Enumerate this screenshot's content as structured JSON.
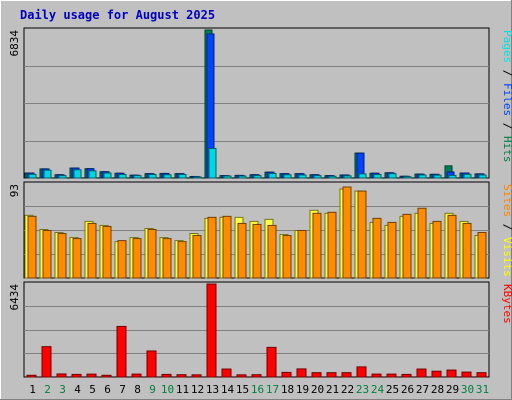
{
  "chart_data": {
    "type": "bar",
    "title": "Daily usage for August 2025",
    "categories": [
      "1",
      "2",
      "3",
      "4",
      "5",
      "6",
      "7",
      "8",
      "9",
      "10",
      "11",
      "12",
      "13",
      "14",
      "15",
      "16",
      "17",
      "18",
      "19",
      "20",
      "21",
      "22",
      "23",
      "24",
      "25",
      "26",
      "27",
      "28",
      "29",
      "30",
      "31"
    ],
    "weekend_days": [
      "2",
      "3",
      "9",
      "10",
      "16",
      "17",
      "23",
      "24",
      "30",
      "31"
    ],
    "panels": [
      {
        "name": "hits-files-pages",
        "ymax_label": "6834",
        "ymax": 6834,
        "ylabel_parts": [
          {
            "text": "Pages",
            "color": "#00e0e0"
          },
          {
            "text": " / ",
            "color": "#000000"
          },
          {
            "text": "Files",
            "color": "#0040ff"
          },
          {
            "text": " / ",
            "color": "#000000"
          },
          {
            "text": "Hits",
            "color": "#008040"
          }
        ],
        "series": [
          {
            "name": "Hits",
            "color": "#00805a",
            "values": [
              230,
              420,
              150,
              460,
              430,
              290,
              220,
              130,
              200,
              210,
              200,
              70,
              6834,
              110,
              120,
              150,
              270,
              200,
              200,
              150,
              110,
              140,
              1150,
              220,
              240,
              80,
              180,
              170,
              560,
              230,
              190
            ]
          },
          {
            "name": "Files",
            "color": "#0044ff",
            "values": [
              230,
              420,
              150,
              460,
              430,
              290,
              220,
              130,
              200,
              210,
              200,
              70,
              6650,
              110,
              120,
              150,
              270,
              200,
              200,
              150,
              110,
              140,
              1150,
              220,
              240,
              80,
              180,
              170,
              280,
              230,
              190
            ]
          },
          {
            "name": "Pages",
            "color": "#00d8e0",
            "values": [
              170,
              360,
              110,
              380,
              330,
              230,
              160,
              110,
              160,
              150,
              160,
              50,
              1360,
              90,
              90,
              110,
              210,
              150,
              140,
              110,
              80,
              100,
              190,
              160,
              200,
              60,
              140,
              130,
              120,
              170,
              140
            ]
          }
        ]
      },
      {
        "name": "visits-sites",
        "ymax_label": "93",
        "ymax": 93,
        "ylabel_parts": [
          {
            "text": "Sites",
            "color": "#ff8000"
          },
          {
            "text": " / ",
            "color": "#000000"
          },
          {
            "text": "Visits",
            "color": "#ffff00"
          }
        ],
        "series": [
          {
            "name": "Visits",
            "color": "#ffff40",
            "values": [
              62,
              48,
              45,
              40,
              56,
              52,
              36,
              40,
              49,
              40,
              37,
              44,
              59,
              60,
              60,
              56,
              58,
              43,
              47,
              67,
              64,
              88,
              86,
              55,
              52,
              61,
              64,
              54,
              64,
              56,
              42
            ]
          },
          {
            "name": "Sites",
            "color": "#ff8c00",
            "values": [
              61,
              47,
              44,
              39,
              54,
              51,
              37,
              39,
              48,
              39,
              36,
              42,
              60,
              61,
              54,
              53,
              52,
              42,
              47,
              64,
              65,
              90,
              86,
              59,
              55,
              63,
              69,
              56,
              62,
              54,
              45
            ]
          }
        ]
      },
      {
        "name": "kbytes",
        "ymax_label": "6434",
        "ymax": 6434,
        "ylabel_parts": [
          {
            "text": "KBytes",
            "color": "#ff0000"
          }
        ],
        "series": [
          {
            "name": "KBytes",
            "color": "#ff0000",
            "values": [
              120,
              2100,
              210,
              180,
              200,
              120,
              3500,
              200,
              1800,
              180,
              160,
              150,
              6434,
              550,
              150,
              160,
              2050,
              320,
              560,
              300,
              300,
              300,
              700,
              200,
              200,
              180,
              550,
              400,
              480,
              340,
              300
            ]
          }
        ]
      }
    ]
  }
}
